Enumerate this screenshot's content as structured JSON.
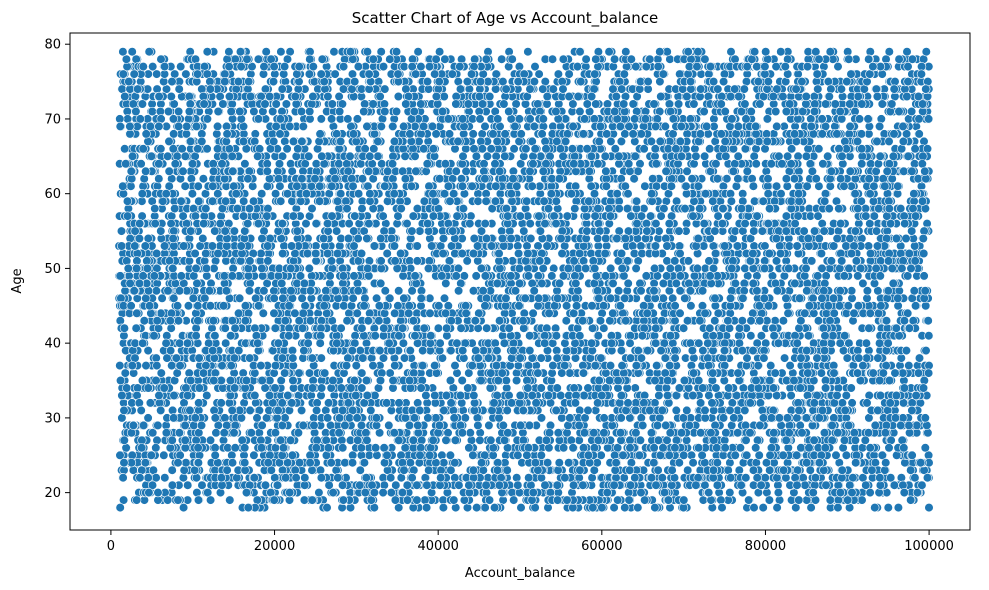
{
  "chart_data": {
    "type": "scatter",
    "title": "Scatter Chart of Age vs Account_balance",
    "xlabel": "Account_balance",
    "ylabel": "Age",
    "xlim": [
      -5000,
      105000
    ],
    "ylim": [
      15,
      81.5
    ],
    "x_ticks": [
      0,
      20000,
      40000,
      60000,
      80000,
      100000
    ],
    "x_tick_labels": [
      "0",
      "20000",
      "40000",
      "60000",
      "80000",
      "100000"
    ],
    "y_ticks": [
      20,
      30,
      40,
      50,
      60,
      70,
      80
    ],
    "y_tick_labels": [
      "20",
      "30",
      "40",
      "50",
      "60",
      "70",
      "80"
    ],
    "grid": false,
    "legend": "none",
    "point_color": "#1f77b4",
    "point_edge_color": "#ffffff",
    "series": [
      {
        "name": "Age vs Account_balance",
        "x_range": [
          1000,
          100000
        ],
        "y_range": [
          18,
          79
        ],
        "y_integer": true,
        "approx_point_count": 9000,
        "note_distribution": "uniform random"
      }
    ]
  }
}
